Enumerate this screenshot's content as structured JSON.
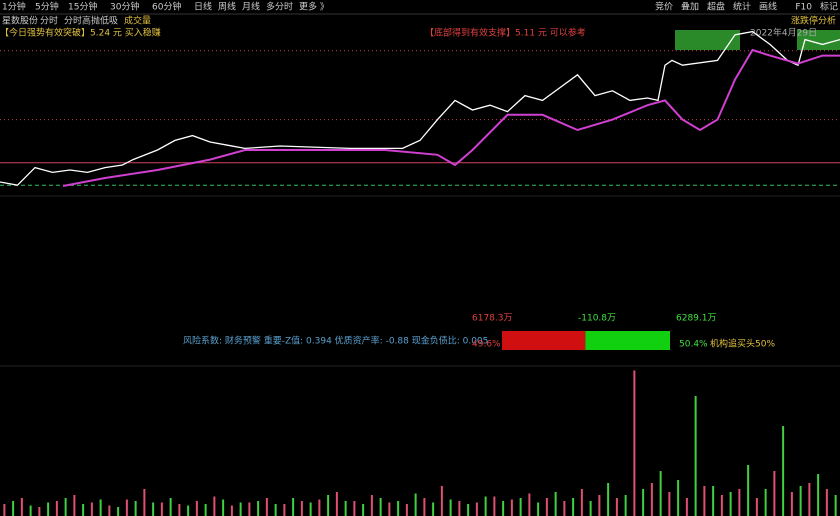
{
  "toolbar": {
    "periods": [
      "1分钟",
      "5分钟",
      "15分钟",
      "30分钟",
      "60分钟",
      "日线",
      "周线",
      "月线",
      "多分时",
      "更多 》"
    ],
    "tools": [
      "竞价",
      "叠加",
      "超盘",
      "统计",
      "画线",
      "F10",
      "标记"
    ]
  },
  "subbar": {
    "stock": "星数股份",
    "items": [
      "分时",
      "分时高抛低吸",
      "成交量"
    ],
    "right": "涨跌停分析"
  },
  "signals": {
    "breakout": "【今日强势有效突破】5.24 元 买入稳赚",
    "support": "【底部得到有效支撑】5.11 元 可以参考",
    "date": "2022年4月29日"
  },
  "price_chart": {
    "xlim": [
      0,
      240
    ],
    "ylim": [
      0,
      100
    ],
    "levels": [
      {
        "value": 17,
        "color": "#d04060",
        "style": "solid"
      },
      {
        "value": 3,
        "color": "#30c060",
        "style": "dash"
      },
      {
        "value": 87,
        "color": "#c04050",
        "style": "dot"
      },
      {
        "value": 44,
        "color": "#c04050",
        "style": "dot"
      }
    ],
    "series": [
      {
        "name": "price",
        "color": "#ffffff",
        "x": [
          0,
          5,
          10,
          15,
          20,
          25,
          30,
          35,
          38,
          45,
          50,
          55,
          60,
          65,
          70,
          80,
          100,
          115,
          120,
          125,
          130,
          135,
          140,
          145,
          150,
          155,
          160,
          165,
          170,
          175,
          180,
          185,
          188,
          190,
          192,
          195,
          205,
          210,
          215,
          220,
          225,
          228,
          230,
          235,
          240
        ],
        "values": [
          5,
          3,
          14,
          11,
          12.5,
          11,
          14,
          15.6,
          19,
          25,
          31,
          34,
          30,
          28,
          26,
          27.5,
          26,
          26,
          31,
          44,
          56,
          50,
          53,
          49,
          59,
          56,
          64,
          72,
          59,
          62,
          56,
          57.5,
          56,
          78,
          81,
          78,
          81,
          97,
          99,
          91,
          81,
          78,
          94,
          91,
          94
        ]
      },
      {
        "name": "average",
        "color": "#d040d0",
        "x": [
          18,
          30,
          45,
          60,
          70,
          90,
          110,
          125,
          130,
          135,
          145,
          155,
          165,
          175,
          185,
          190,
          195,
          200,
          205,
          210,
          215,
          220,
          228,
          235,
          240
        ],
        "values": [
          2.5,
          7.5,
          12.5,
          19,
          25,
          25,
          25,
          22,
          15.6,
          25,
          47,
          47,
          37.5,
          44,
          53,
          56,
          44,
          37.5,
          44,
          69,
          87.5,
          84,
          79,
          84,
          84
        ]
      }
    ]
  },
  "risk_panel": {
    "inflow": "6178.3万",
    "net": "-110.8万",
    "outflow": "6289.1万",
    "summary": "风险系数: 财务预警 重要-Z值: 0.394 优质资产率: -0.88 现金负债比: 0.005",
    "red_share": {
      "value": 49.6,
      "label": "49.6%"
    },
    "green_share": {
      "value": 50.4,
      "label": "50.4%"
    },
    "note": "机构追买头50%"
  },
  "volume_chart": {
    "ylim": [
      0,
      100
    ],
    "up": [
      8,
      12,
      6,
      10,
      14,
      9,
      7,
      11,
      18,
      9,
      8,
      10,
      13,
      7,
      9,
      12,
      8,
      10,
      11,
      16,
      10,
      14,
      9,
      8,
      12,
      20,
      10,
      9,
      13,
      11,
      15,
      12,
      10,
      18,
      14,
      12,
      97,
      22,
      16,
      12,
      20,
      14,
      18,
      12,
      30,
      16,
      22,
      18
    ],
    "down": [
      10,
      7,
      9,
      12,
      8,
      11,
      6,
      10,
      9,
      12,
      7,
      8,
      11,
      9,
      10,
      8,
      12,
      9,
      14,
      10,
      8,
      12,
      10,
      15,
      9,
      11,
      8,
      13,
      10,
      12,
      9,
      16,
      12,
      10,
      22,
      14,
      18,
      30,
      24,
      80,
      20,
      16,
      34,
      18,
      60,
      20,
      28,
      14
    ]
  }
}
